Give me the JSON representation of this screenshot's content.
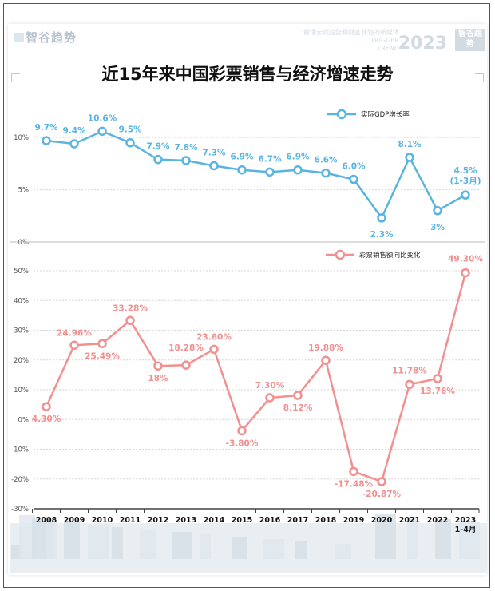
{
  "branding": {
    "logo_text": "智谷趋势",
    "tagline": "最懂宏观趋势和财富规划的新媒体",
    "sub_en_1": "TRIGGER",
    "sub_en_2": "TREND",
    "year": "2023",
    "box_text": "智谷趋势"
  },
  "title": "近15年来中国彩票销售与经济增速走势",
  "chart_data": {
    "type": "line",
    "x_labels": [
      "2008",
      "2009",
      "2010",
      "2011",
      "2012",
      "2013",
      "2014",
      "2015",
      "2016",
      "2017",
      "2018",
      "2019",
      "2020",
      "2021",
      "2022",
      "2023"
    ],
    "x_sub_label": "1-4月",
    "charts": [
      {
        "name": "gdp",
        "legend": "实际GDP增长率",
        "color": "#5ab4e0",
        "ylim": [
          0,
          12
        ],
        "y_ticks": [
          0,
          5,
          10
        ],
        "y_tick_labels": [
          "0%",
          "5%",
          "10%"
        ],
        "values": [
          9.7,
          9.4,
          10.6,
          9.5,
          7.9,
          7.8,
          7.3,
          6.9,
          6.7,
          6.9,
          6.6,
          6.0,
          2.3,
          8.1,
          3.0,
          4.5
        ],
        "labels": [
          "9.7%",
          "9.4%",
          "10.6%",
          "9.5%",
          "7.9%",
          "7.8%",
          "7.3%",
          "6.9%",
          "6.7%",
          "6.9%",
          "6.6%",
          "6.0%",
          "2.3%",
          "8.1%",
          "3%",
          "4.5%"
        ],
        "last_label_note": "(1-3月)"
      },
      {
        "name": "lottery",
        "legend": "彩票销售额同比变化",
        "color": "#f28f8f",
        "ylim": [
          -30,
          50
        ],
        "y_ticks": [
          -30,
          -20,
          -10,
          0,
          10,
          20,
          30,
          40,
          50
        ],
        "y_tick_labels": [
          "-30%",
          "-20%",
          "-10%",
          "0%",
          "10%",
          "20%",
          "30%",
          "40%",
          "50%"
        ],
        "values": [
          4.3,
          24.96,
          25.49,
          33.28,
          18.0,
          18.28,
          23.6,
          -3.8,
          7.3,
          8.12,
          19.88,
          -17.48,
          -20.87,
          11.78,
          13.76,
          49.3
        ],
        "labels": [
          "4.30%",
          "24.96%",
          "25.49%",
          "33.28%",
          "18%",
          "18.28%",
          "23.60%",
          "-3.80%",
          "7.30%",
          "8.12%",
          "19.88%",
          "-17.48%",
          "-20.87%",
          "11.78%",
          "13.76%",
          "49.30%"
        ]
      }
    ]
  }
}
